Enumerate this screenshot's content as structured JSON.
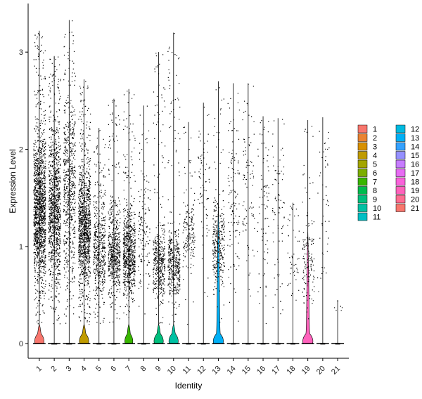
{
  "chart_data": {
    "type": "violin",
    "xlabel": "Identity",
    "ylabel": "Expression Level",
    "ylim": [
      -0.15,
      3.5
    ],
    "yticks": [
      0,
      1,
      2,
      3
    ],
    "categories": [
      "1",
      "2",
      "3",
      "4",
      "5",
      "6",
      "7",
      "8",
      "9",
      "10",
      "11",
      "12",
      "13",
      "14",
      "15",
      "16",
      "17",
      "18",
      "19",
      "20",
      "21"
    ],
    "colors": [
      "#F8766D",
      "#EA8331",
      "#D89000",
      "#C09B00",
      "#A3A500",
      "#7CAE00",
      "#39B600",
      "#00BB4E",
      "#00BF7D",
      "#00C1A3",
      "#00BFC4",
      "#00BAE0",
      "#00B0F6",
      "#35A2FF",
      "#9590FF",
      "#C77CFF",
      "#E76BF3",
      "#FA62DB",
      "#FF62BC",
      "#FF6C91",
      "#F8766D"
    ],
    "series": [
      {
        "group": "1",
        "max": 3.22,
        "point_density": 1.0,
        "dense_range": [
          0.3,
          2.2
        ],
        "violin_width": 0.35
      },
      {
        "group": "2",
        "max": 2.96,
        "point_density": 0.75,
        "dense_range": [
          0.3,
          2.2
        ],
        "violin_width": 0.06
      },
      {
        "group": "3",
        "max": 3.33,
        "point_density": 0.45,
        "dense_range": [
          0.3,
          2.6
        ],
        "violin_width": 0.06
      },
      {
        "group": "4",
        "max": 2.72,
        "point_density": 0.8,
        "dense_range": [
          0.3,
          1.9
        ],
        "violin_width": 0.35
      },
      {
        "group": "5",
        "max": 2.22,
        "point_density": 0.35,
        "dense_range": [
          0.2,
          1.6
        ],
        "violin_width": 0.05
      },
      {
        "group": "6",
        "max": 2.52,
        "point_density": 0.4,
        "dense_range": [
          0.3,
          1.4
        ],
        "violin_width": 0.05
      },
      {
        "group": "7",
        "max": 2.62,
        "point_density": 0.5,
        "dense_range": [
          0.3,
          1.4
        ],
        "violin_width": 0.3
      },
      {
        "group": "8",
        "max": 2.45,
        "point_density": 0.1,
        "dense_range": [
          0.3,
          1.8
        ],
        "violin_width": 0.05
      },
      {
        "group": "9",
        "max": 3.0,
        "point_density": 0.3,
        "dense_range": [
          0.3,
          1.2
        ],
        "violin_width": 0.35
      },
      {
        "group": "10",
        "max": 3.2,
        "point_density": 0.3,
        "dense_range": [
          0.3,
          1.2
        ],
        "violin_width": 0.35
      },
      {
        "group": "11",
        "max": 2.28,
        "point_density": 0.12,
        "dense_range": [
          0.6,
          1.5
        ],
        "violin_width": 0.05
      },
      {
        "group": "12",
        "max": 2.48,
        "point_density": 0.05,
        "dense_range": [
          0.5,
          2.4
        ],
        "violin_width": 0.05
      },
      {
        "group": "13",
        "max": 2.7,
        "point_density": 0.22,
        "dense_range": [
          0.4,
          1.5
        ],
        "violin_width": 0.38
      },
      {
        "group": "14",
        "max": 2.68,
        "point_density": 0.08,
        "dense_range": [
          0.2,
          2.5
        ],
        "violin_width": 0.05
      },
      {
        "group": "15",
        "max": 2.68,
        "point_density": 0.06,
        "dense_range": [
          0.2,
          2.5
        ],
        "violin_width": 0.05
      },
      {
        "group": "16",
        "max": 2.34,
        "point_density": 0.05,
        "dense_range": [
          0.2,
          2.2
        ],
        "violin_width": 0.05
      },
      {
        "group": "17",
        "max": 2.32,
        "point_density": 0.05,
        "dense_range": [
          0.2,
          2.2
        ],
        "violin_width": 0.05
      },
      {
        "group": "18",
        "max": 1.45,
        "point_density": 0.03,
        "dense_range": [
          0.3,
          1.4
        ],
        "violin_width": 0.05
      },
      {
        "group": "19",
        "max": 2.3,
        "point_density": 0.1,
        "dense_range": [
          0.2,
          1.3
        ],
        "violin_width": 0.38
      },
      {
        "group": "20",
        "max": 2.33,
        "point_density": 0.03,
        "dense_range": [
          0.2,
          2.3
        ],
        "violin_width": 0.05
      },
      {
        "group": "21",
        "max": 0.45,
        "point_density": 0.0,
        "dense_range": [
          0.2,
          0.4
        ],
        "violin_width": 0.05
      }
    ],
    "grid": false,
    "legend": {
      "placement": "right",
      "entries": [
        "1",
        "2",
        "3",
        "4",
        "5",
        "6",
        "7",
        "8",
        "9",
        "10",
        "11",
        "12",
        "13",
        "14",
        "15",
        "16",
        "17",
        "18",
        "19",
        "20",
        "21"
      ]
    }
  }
}
